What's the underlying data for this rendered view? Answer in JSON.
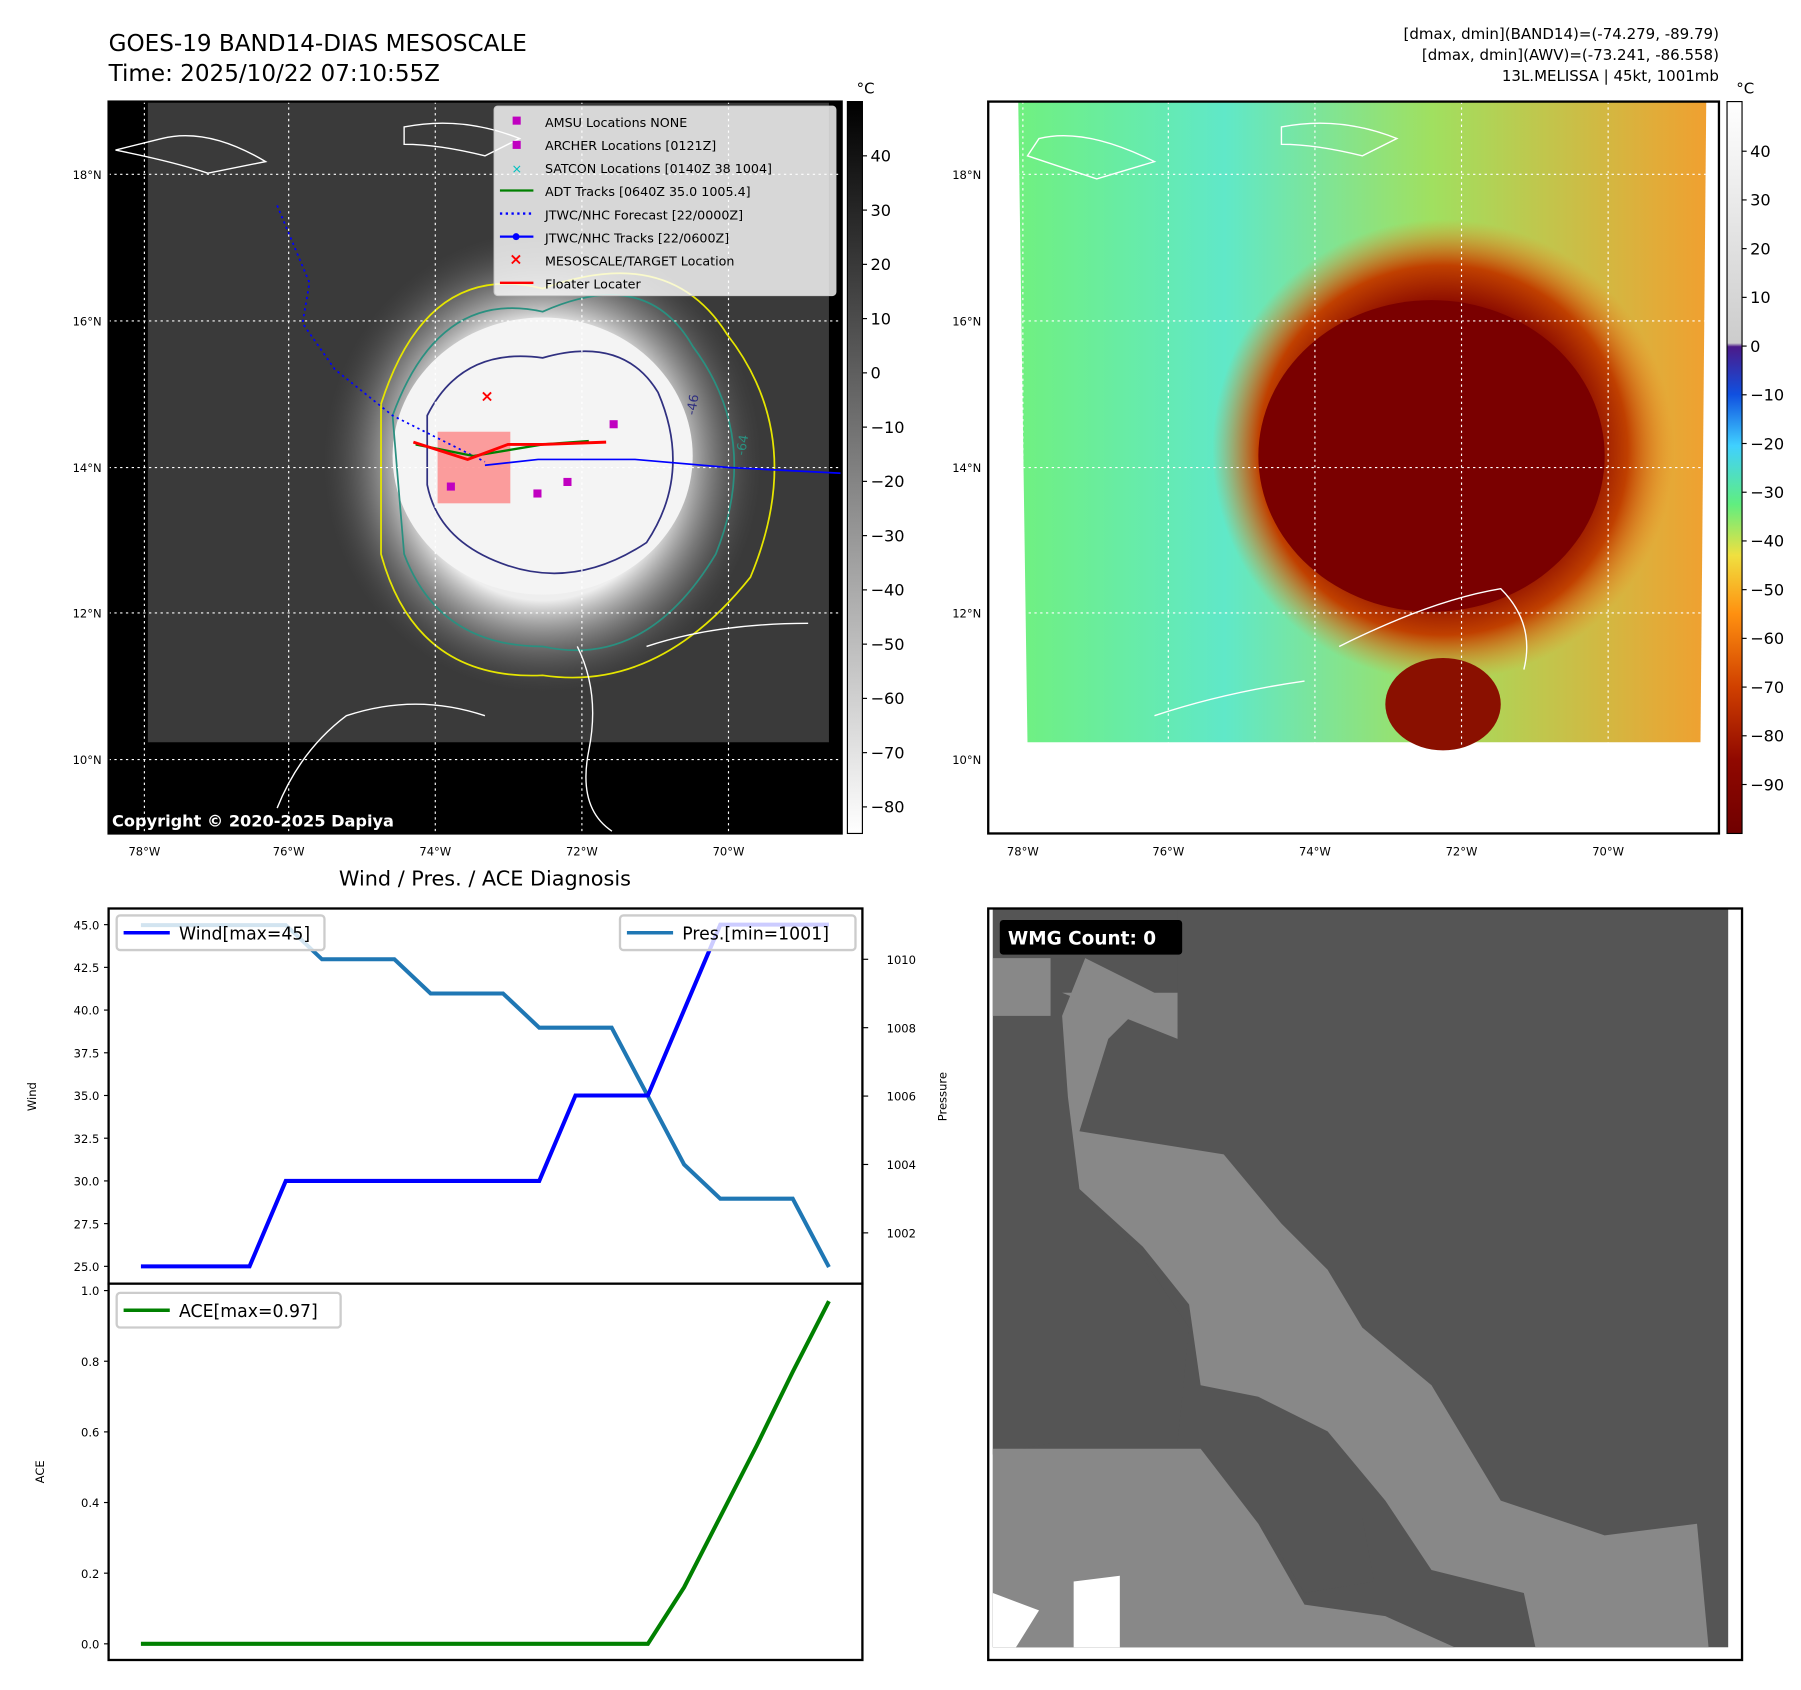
{
  "header": {
    "title": "GOES-19 BAND14-DIAS MESOSCALE",
    "time": "Time: 2025/10/22 07:10:55Z",
    "stats_band14": "[dmax, dmin](BAND14)=(-74.279, -89.79)",
    "stats_awv": "[dmax, dmin](AWV)=(-73.241, -86.558)",
    "storm": "13L.MELISSA | 45kt, 1001mb"
  },
  "map": {
    "lon_ticks": [
      "78°W",
      "76°W",
      "74°W",
      "72°W",
      "70°W"
    ],
    "lat_ticks": [
      "18°N",
      "16°N",
      "14°N",
      "12°N",
      "10°N"
    ],
    "copyright": "Copyright © 2020-2025 Dapiya",
    "legend": [
      "AMSU Locations NONE",
      "ARCHER Locations [0121Z]",
      "SATCON Locations [0140Z 38 1004]",
      "ADT Tracks [0640Z 35.0 1005.4]",
      "JTWC/NHC Forecast [22/0000Z]",
      "JTWC/NHC Tracks [22/0600Z]",
      "MESOSCALE/TARGET Location",
      "Floater Locater"
    ],
    "contour_labels": [
      "-64",
      "-46"
    ]
  },
  "colorbar_left": {
    "unit": "°C",
    "ticks": [
      "40",
      "30",
      "20",
      "10",
      "0",
      "−10",
      "−20",
      "−30",
      "−40",
      "−50",
      "−60",
      "−70",
      "−80"
    ]
  },
  "colorbar_right": {
    "unit": "°C",
    "ticks": [
      "40",
      "30",
      "20",
      "10",
      "0",
      "−10",
      "−20",
      "−30",
      "−40",
      "−50",
      "−60",
      "−70",
      "−80",
      "−90"
    ]
  },
  "wmg": {
    "label": "WMG Count: 0"
  },
  "colors": {
    "wind": "#0000ff",
    "pressure": "#1f77b4",
    "ace": "#008000"
  },
  "chart_data": {
    "type": "line",
    "title": "Wind / Pres. / ACE Diagnosis",
    "x": [
      0,
      1,
      2,
      3,
      4,
      5,
      6,
      7,
      8,
      9,
      10,
      11,
      12,
      13,
      14,
      15,
      16,
      17,
      18,
      19
    ],
    "series": [
      {
        "name": "Wind[max=45]",
        "axis": "Wind",
        "values": [
          25,
          25,
          25,
          25,
          30,
          30,
          30,
          30,
          30,
          30,
          30,
          30,
          35,
          35,
          35,
          40,
          45,
          45,
          45,
          45
        ]
      },
      {
        "name": "Pres.[min=1001]",
        "axis": "Pressure",
        "values": [
          1011,
          1011,
          1011,
          1011,
          1011,
          1010,
          1010,
          1010,
          1009,
          1009,
          1009,
          1008,
          1008,
          1008,
          1006,
          1004,
          1003,
          1003,
          1003,
          1001
        ]
      },
      {
        "name": "ACE[max=0.97]",
        "axis": "ACE",
        "values": [
          0,
          0,
          0,
          0,
          0,
          0,
          0,
          0,
          0,
          0,
          0,
          0,
          0,
          0,
          0,
          0.16,
          0.36,
          0.56,
          0.77,
          0.97
        ]
      }
    ],
    "wind_ylabel": "Wind",
    "pressure_ylabel": "Pressure",
    "ace_ylabel": "ACE",
    "wind_ticks": [
      "25.0",
      "27.5",
      "30.0",
      "32.5",
      "35.0",
      "37.5",
      "40.0",
      "42.5",
      "45.0"
    ],
    "wind_ylim": [
      24.6,
      46.0
    ],
    "pressure_ticks": [
      "1002",
      "1004",
      "1006",
      "1008",
      "1010"
    ],
    "pressure_ylim": [
      1000.9,
      1011.0
    ],
    "ace_ticks": [
      "0.0",
      "0.2",
      "0.4",
      "0.6",
      "0.8",
      "1.0"
    ],
    "ace_ylim": [
      -0.05,
      1.02
    ]
  }
}
